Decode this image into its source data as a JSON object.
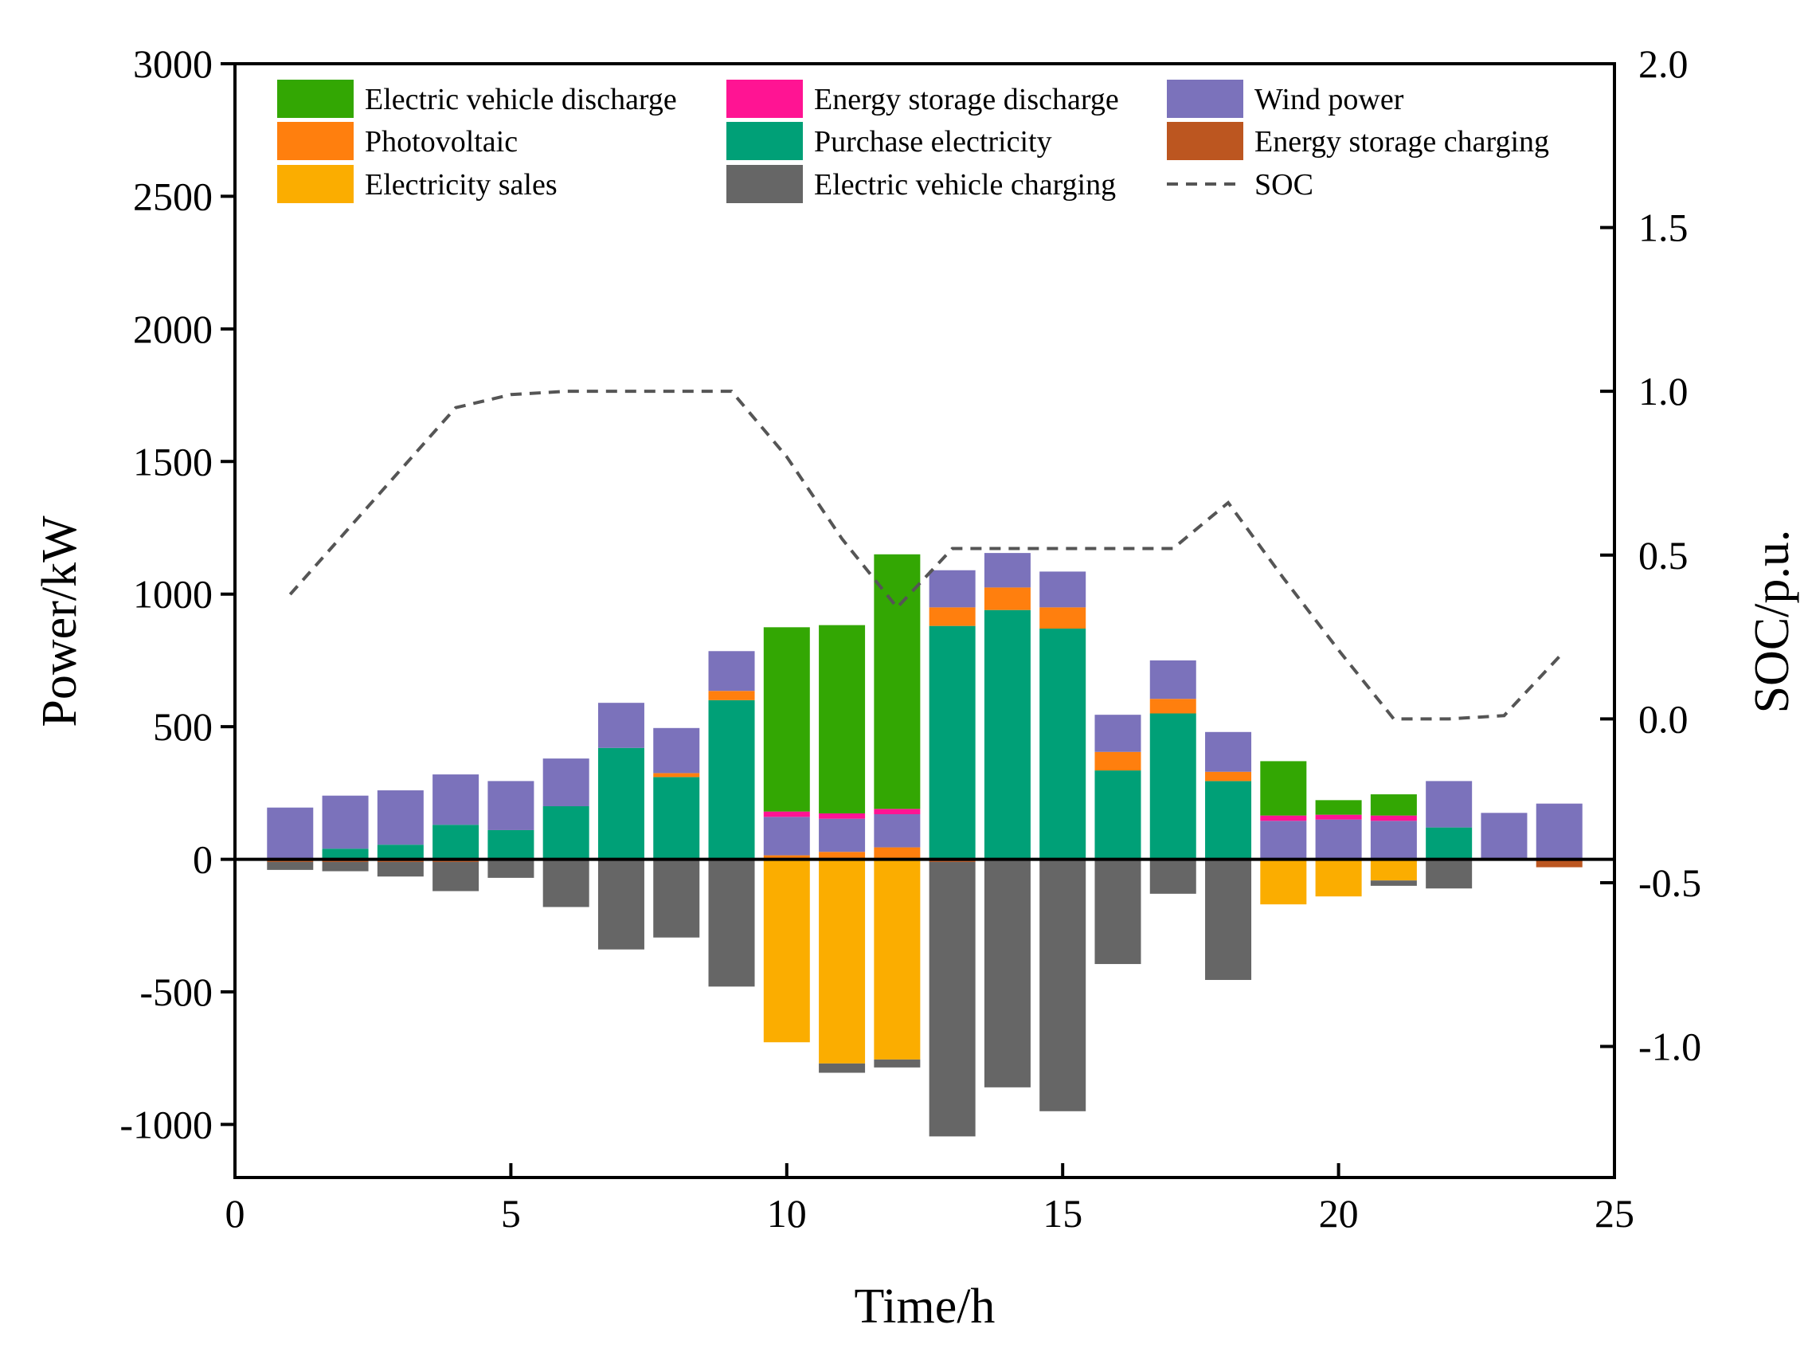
{
  "chart_data": {
    "type": "bar",
    "stacked": true,
    "xlabel": "Time/h",
    "ylabel": "Power/kW",
    "y2label": "SOC/p.u.",
    "xlim": [
      0,
      25
    ],
    "ylim": [
      -1200,
      3000
    ],
    "y2lim": [
      -1.4,
      2.0
    ],
    "xticks": [
      "0",
      "5",
      "10",
      "15",
      "20",
      "25"
    ],
    "xtick_values": [
      0,
      5,
      10,
      15,
      20,
      25
    ],
    "yticks": [
      "3000",
      "2500",
      "2000",
      "1500",
      "1000",
      "500",
      "0",
      "-500",
      "-1000"
    ],
    "ytick_values": [
      3000,
      2500,
      2000,
      1500,
      1000,
      500,
      0,
      -500,
      -1000
    ],
    "y2ticks": [
      "2.0",
      "1.5",
      "1.0",
      "0.5",
      "0.0",
      "-0.5",
      "-1.0"
    ],
    "y2tick_values": [
      2.0,
      1.5,
      1.0,
      0.5,
      0.0,
      -0.5,
      -1.0
    ],
    "x": [
      1,
      2,
      3,
      4,
      5,
      6,
      7,
      8,
      9,
      10,
      11,
      12,
      13,
      14,
      15,
      16,
      17,
      18,
      19,
      20,
      21,
      22,
      23,
      24
    ],
    "positive_series": [
      {
        "name": "Purchase electricity",
        "color": "#00A077",
        "values": [
          0,
          40,
          55,
          130,
          110,
          200,
          420,
          310,
          600,
          0,
          0,
          0,
          880,
          940,
          870,
          335,
          550,
          295,
          0,
          0,
          0,
          120,
          0,
          0
        ]
      },
      {
        "name": "Photovoltaic",
        "color": "#FF7F0E",
        "values": [
          0,
          0,
          0,
          0,
          0,
          0,
          0,
          15,
          35,
          15,
          28,
          45,
          70,
          85,
          80,
          70,
          55,
          35,
          0,
          0,
          0,
          0,
          0,
          0
        ]
      },
      {
        "name": "Wind power",
        "color": "#7B72BB",
        "values": [
          195,
          200,
          205,
          190,
          185,
          180,
          170,
          170,
          150,
          145,
          125,
          125,
          140,
          130,
          135,
          140,
          145,
          150,
          145,
          150,
          145,
          175,
          175,
          210
        ]
      },
      {
        "name": "Energy storage discharge",
        "color": "#FF1493",
        "values": [
          0,
          0,
          0,
          0,
          0,
          0,
          0,
          0,
          0,
          20,
          20,
          20,
          0,
          0,
          0,
          0,
          0,
          0,
          20,
          18,
          20,
          0,
          0,
          0
        ]
      },
      {
        "name": "Electric vehicle discharge",
        "color": "#33A703",
        "values": [
          0,
          0,
          0,
          0,
          0,
          0,
          0,
          0,
          0,
          695,
          710,
          960,
          0,
          0,
          0,
          0,
          0,
          0,
          205,
          55,
          80,
          0,
          0,
          0
        ]
      }
    ],
    "negative_series": [
      {
        "name": "Energy storage charging",
        "color": "#BC5620",
        "values": [
          -10,
          -10,
          -10,
          -10,
          0,
          0,
          0,
          0,
          0,
          0,
          0,
          0,
          -10,
          0,
          0,
          0,
          0,
          0,
          0,
          0,
          0,
          0,
          0,
          -30
        ]
      },
      {
        "name": "Electricity sales",
        "color": "#FBAD00",
        "values": [
          0,
          0,
          0,
          0,
          0,
          0,
          0,
          0,
          0,
          -690,
          -770,
          -755,
          0,
          0,
          0,
          0,
          0,
          0,
          -170,
          -140,
          -80,
          0,
          0,
          0
        ]
      },
      {
        "name": "Electric vehicle charging",
        "color": "#666666",
        "values": [
          -30,
          -35,
          -55,
          -110,
          -70,
          -180,
          -340,
          -295,
          -480,
          0,
          -35,
          -30,
          -1035,
          -860,
          -950,
          -395,
          -130,
          -455,
          0,
          0,
          -20,
          -110,
          0,
          0
        ]
      }
    ],
    "soc": {
      "name": "SOC",
      "color": "#555555",
      "style": "dashed",
      "x": [
        1,
        2,
        3,
        4,
        5,
        6,
        7,
        8,
        9,
        10,
        11,
        12,
        13,
        14,
        15,
        16,
        17,
        18,
        19,
        20,
        21,
        22,
        23,
        24
      ],
      "values": [
        0.38,
        0.57,
        0.76,
        0.95,
        0.99,
        1.0,
        1.0,
        1.0,
        1.0,
        0.8,
        0.55,
        0.34,
        0.52,
        0.52,
        0.52,
        0.52,
        0.52,
        0.66,
        0.43,
        0.21,
        0.0,
        0.0,
        0.01,
        0.19
      ]
    },
    "legend": {
      "placement": "top",
      "columns": [
        [
          "Electric vehicle discharge",
          "Photovoltaic",
          "Electricity sales"
        ],
        [
          "Energy storage discharge",
          "Purchase electricity",
          "Electric vehicle charging"
        ],
        [
          "Wind power",
          "Energy storage charging",
          "SOC"
        ]
      ]
    }
  }
}
